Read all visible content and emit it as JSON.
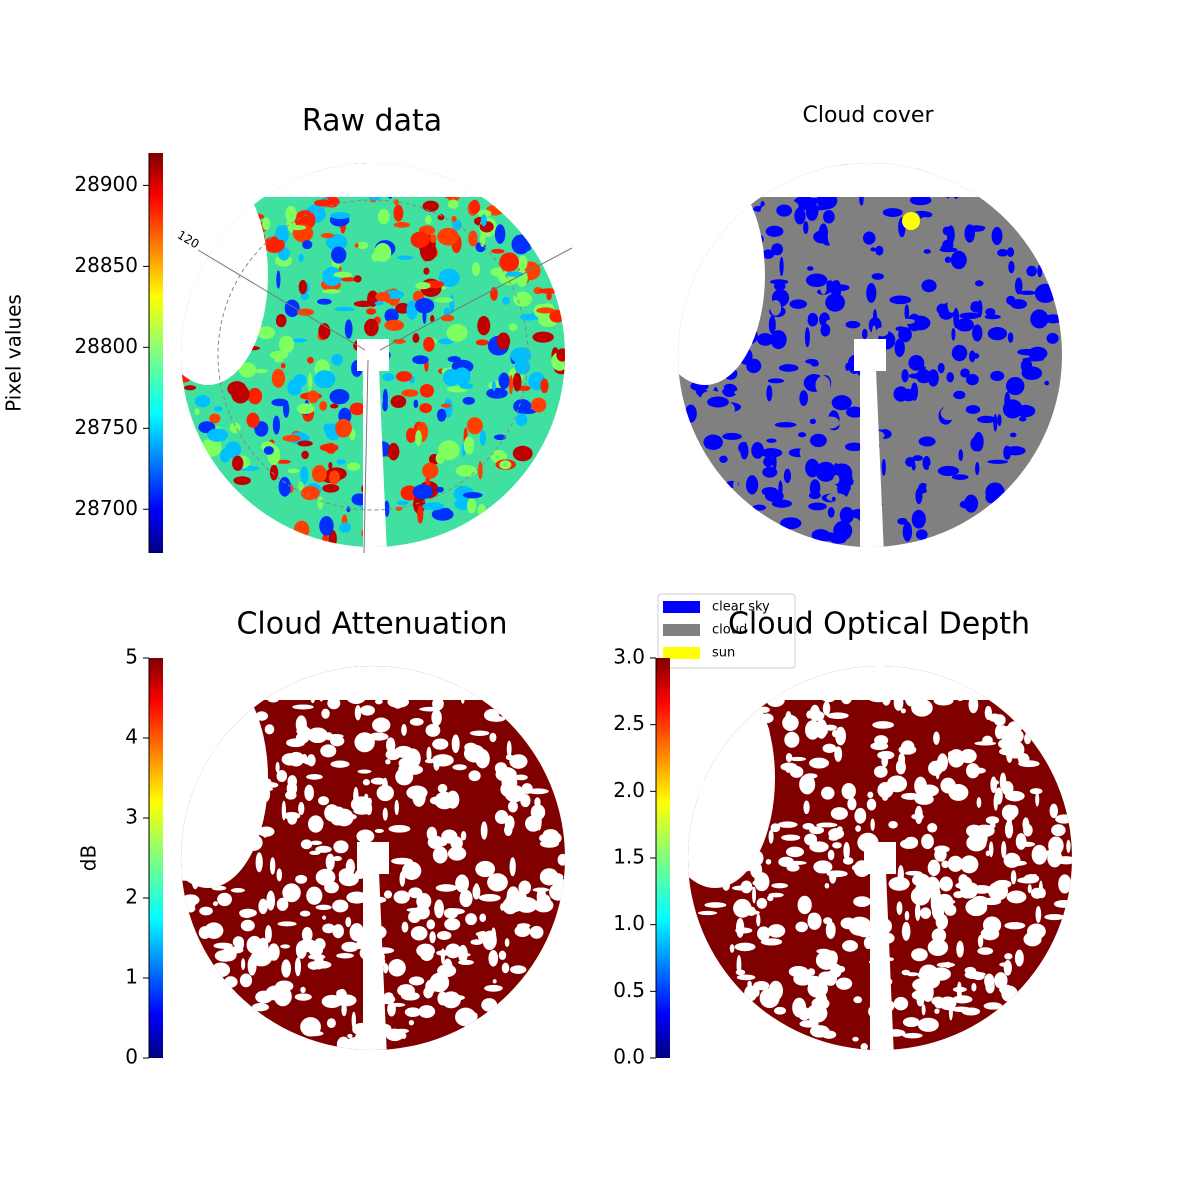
{
  "chart_data": [
    {
      "type": "image",
      "title": "Raw data",
      "colorbar_label": "Pixel values",
      "colormap": "jet",
      "colorbar_lim": [
        28673,
        28920
      ],
      "colorbar_ticks": [
        28700,
        28750,
        28800,
        28850,
        28900
      ],
      "annotations": [
        "120"
      ]
    },
    {
      "type": "classification",
      "title": "Cloud cover",
      "series": [
        {
          "name": "clear sky",
          "color": "#0000ff"
        },
        {
          "name": "cloud",
          "color": "#808080"
        },
        {
          "name": "sun",
          "color": "#ffff00"
        }
      ]
    },
    {
      "type": "image",
      "title": "Cloud Attenuation",
      "colorbar_label": "dB",
      "colormap": "jet",
      "colorbar_lim": [
        0,
        5
      ],
      "colorbar_ticks": [
        0,
        1,
        2,
        3,
        4,
        5
      ]
    },
    {
      "type": "image",
      "title": "Cloud Optical Depth",
      "colormap": "jet",
      "colorbar_lim": [
        0,
        3
      ],
      "colorbar_ticks": [
        {
          "value": 0,
          "label": "0.0"
        },
        {
          "value": 0.5,
          "label": "0.5"
        },
        {
          "value": 1,
          "label": "1.0"
        },
        {
          "value": 1.5,
          "label": "1.5"
        },
        {
          "value": 2,
          "label": "2.0"
        },
        {
          "value": 2.5,
          "label": "2.5"
        },
        {
          "value": 3,
          "label": "3.0"
        }
      ]
    }
  ]
}
